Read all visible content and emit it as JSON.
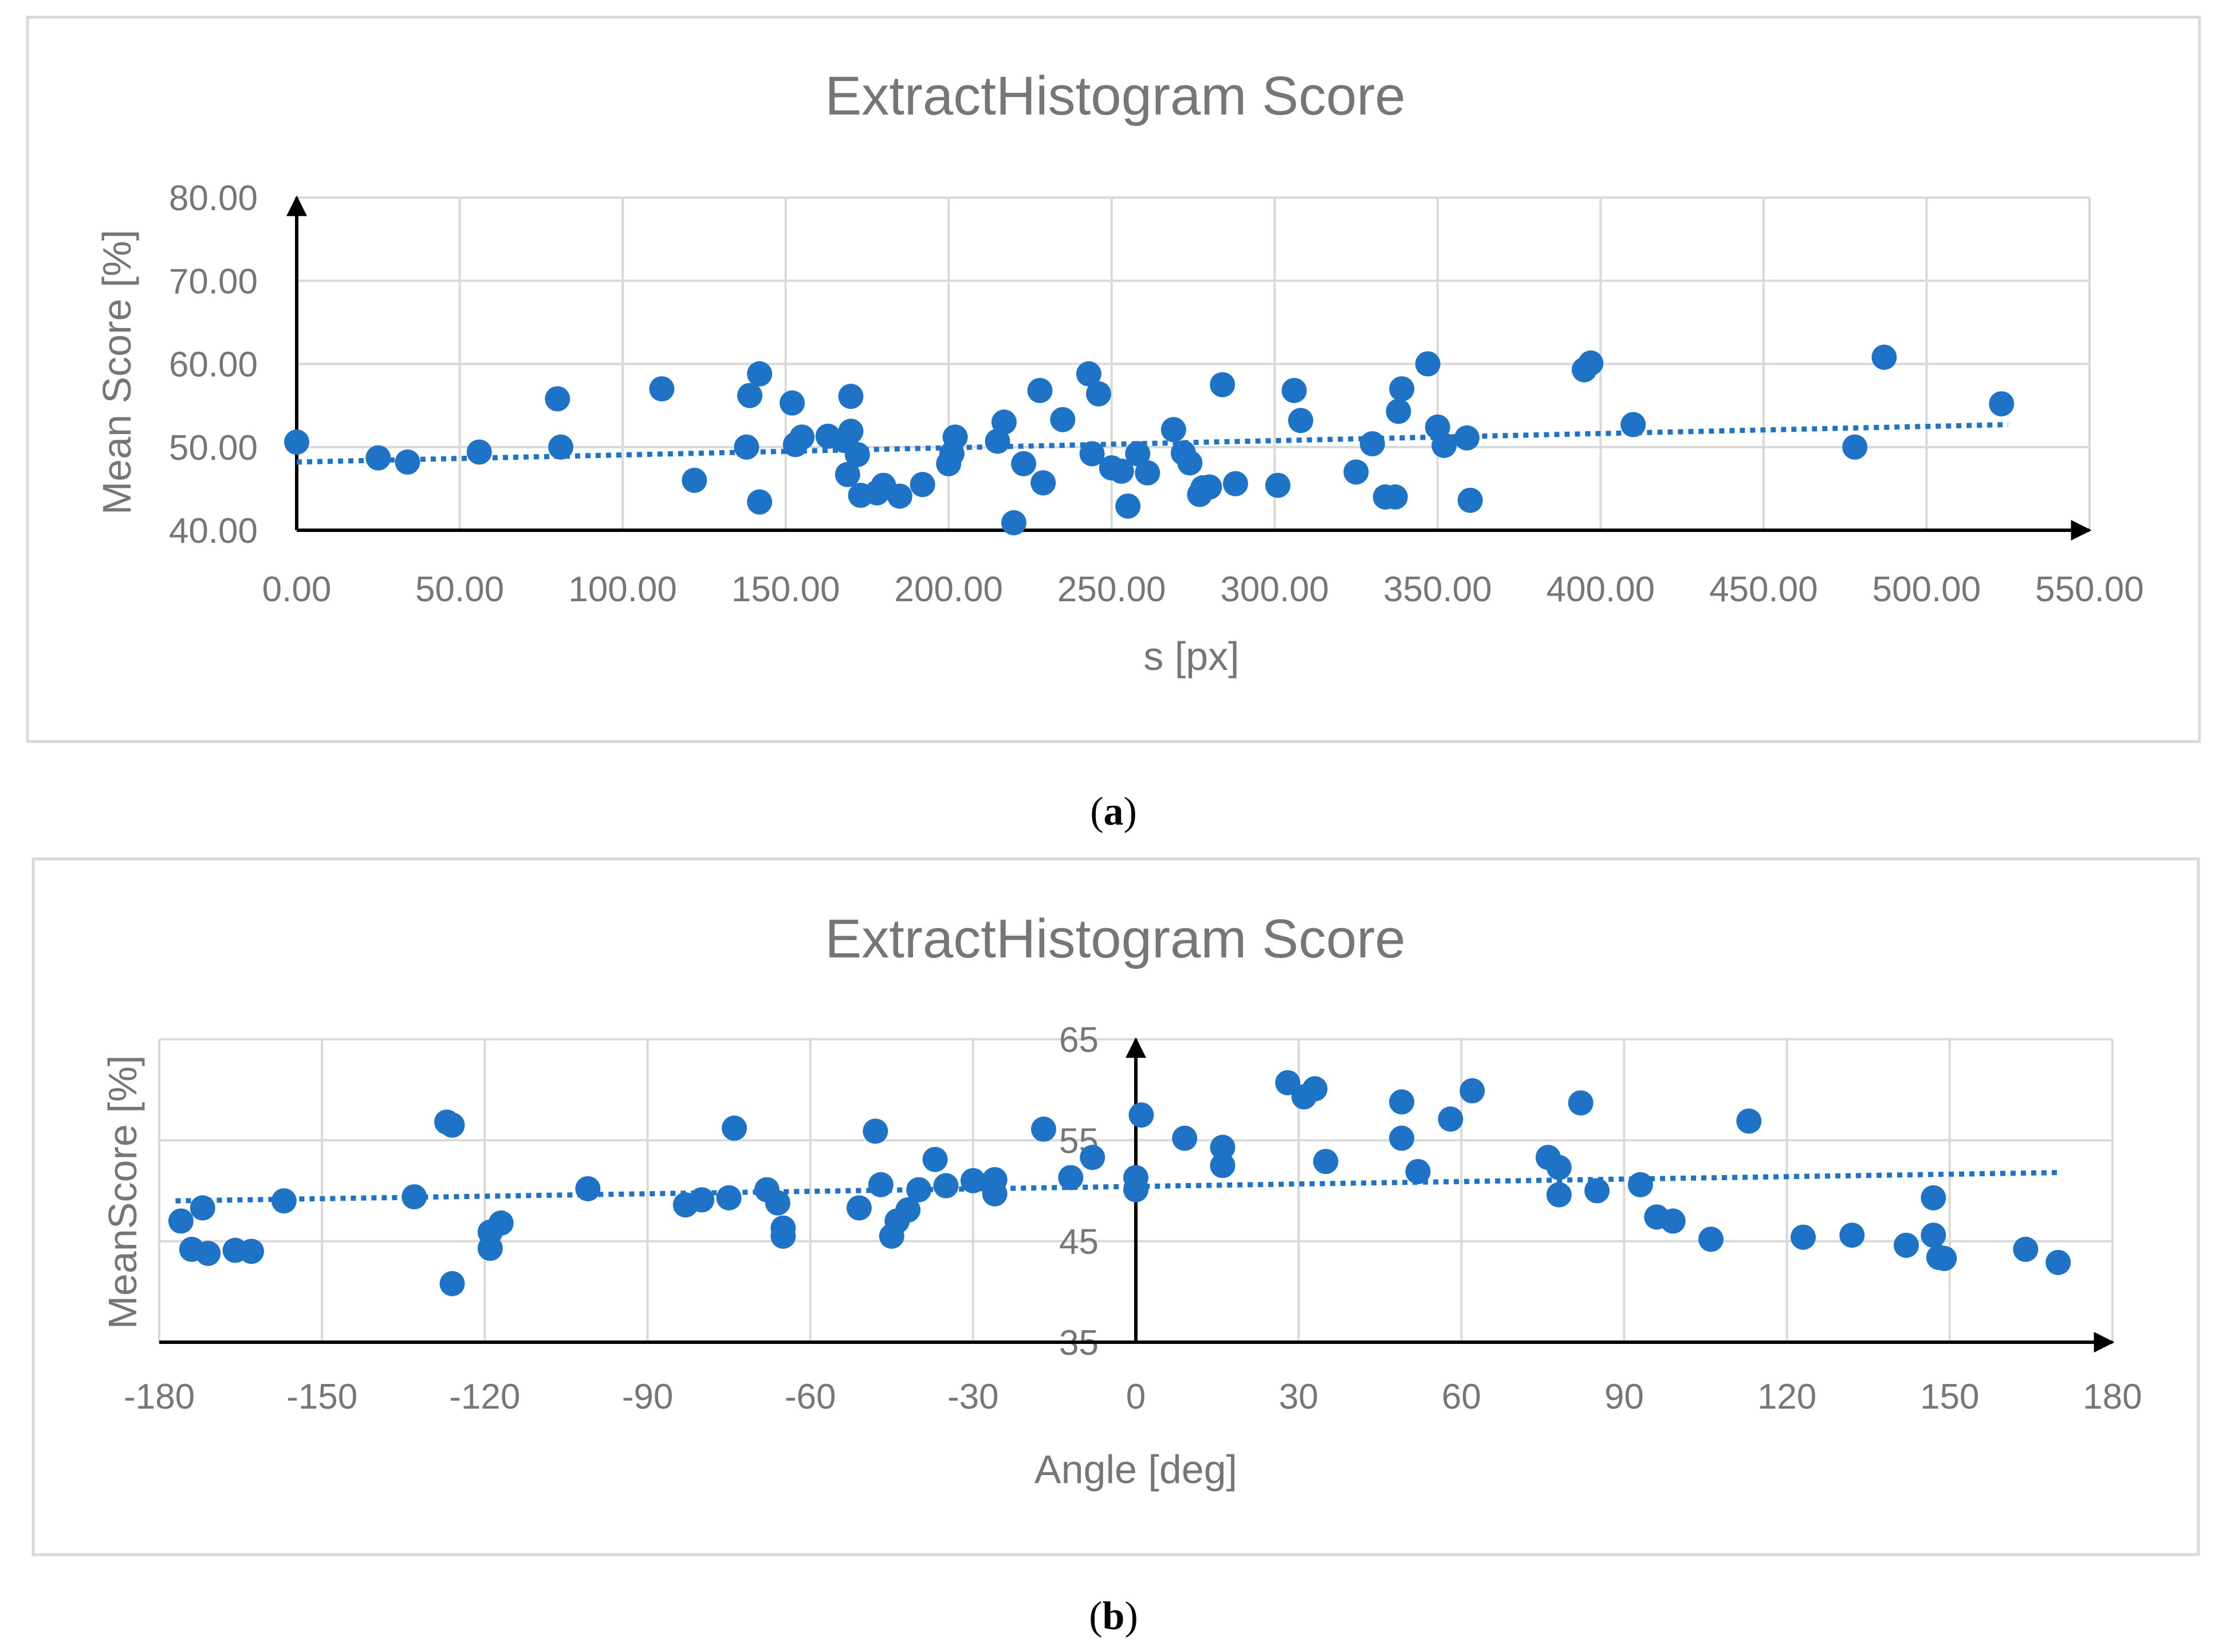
{
  "chart_data": [
    {
      "type": "scatter",
      "title": "ExtractHistogram Score",
      "xlabel": "s [px]",
      "ylabel": "Mean Score [%]",
      "xlim": [
        0,
        550
      ],
      "ylim": [
        40,
        80
      ],
      "xticks": [
        "0.00",
        "50.00",
        "100.00",
        "150.00",
        "200.00",
        "250.00",
        "300.00",
        "350.00",
        "400.00",
        "450.00",
        "500.00",
        "550.00"
      ],
      "yticks": [
        "40.00",
        "50.00",
        "60.00",
        "70.00",
        "80.00"
      ],
      "grid": true,
      "caption": "(a)",
      "caption_letter": "a",
      "marker_color": "#1f73c6",
      "trendline": {
        "style": "dotted",
        "x": [
          0,
          525
        ],
        "y": [
          48.2,
          52.7
        ]
      },
      "series": [
        {
          "name": "Mean Score",
          "x": [
            0,
            25,
            34,
            56,
            80,
            81,
            112,
            122,
            138,
            139,
            142,
            142,
            152,
            153,
            155,
            163,
            168,
            169,
            170,
            170,
            172,
            173,
            178,
            180,
            185,
            192,
            200,
            201,
            202,
            215,
            217,
            220,
            223,
            228,
            229,
            235,
            243,
            244,
            246,
            250,
            253,
            255,
            258,
            261,
            269,
            272,
            274,
            277,
            278,
            280,
            284,
            288,
            301,
            306,
            308,
            325,
            330,
            334,
            337,
            338,
            339,
            347,
            350,
            352,
            359,
            360,
            395,
            397,
            410,
            478,
            487,
            523
          ],
          "y": [
            50.6,
            48.7,
            48.2,
            49.4,
            55.8,
            50.0,
            57.0,
            46.0,
            50.0,
            56.2,
            58.8,
            43.4,
            55.3,
            50.3,
            51.2,
            51.3,
            50.8,
            46.7,
            56.1,
            51.9,
            49.1,
            44.2,
            44.5,
            45.4,
            44.1,
            45.5,
            48.0,
            49.2,
            51.2,
            50.7,
            53.0,
            40.9,
            48.0,
            56.8,
            45.7,
            53.3,
            58.8,
            49.2,
            56.4,
            47.5,
            47.1,
            42.9,
            49.2,
            46.9,
            52.1,
            49.3,
            48.1,
            44.3,
            45.1,
            45.2,
            57.5,
            45.6,
            45.4,
            56.8,
            53.2,
            47.0,
            50.4,
            44.0,
            44.0,
            54.3,
            57.0,
            60.0,
            52.4,
            50.2,
            51.1,
            43.6,
            59.3,
            60.1,
            52.7,
            50.0,
            60.8,
            55.2
          ]
        }
      ]
    },
    {
      "type": "scatter",
      "title": "ExtractHistogram Score",
      "xlabel": "Angle [deg]",
      "ylabel": "MeanScore [%]",
      "xlim": [
        -180,
        180
      ],
      "ylim": [
        35,
        65
      ],
      "xticks": [
        "-180",
        "-150",
        "-120",
        "-90",
        "-60",
        "-30",
        "0",
        "30",
        "60",
        "90",
        "120",
        "150",
        "180"
      ],
      "yticks": [
        "35",
        "45",
        "55",
        "65"
      ],
      "grid": true,
      "caption": "(b)",
      "caption_letter": "b",
      "marker_color": "#1f73c6",
      "trendline": {
        "style": "dotted",
        "x": [
          -177,
          170
        ],
        "y": [
          49.0,
          51.8
        ]
      },
      "series": [
        {
          "name": "MeanScore",
          "x": [
            -176,
            -174,
            -172,
            -171,
            -166,
            -163,
            -157,
            -133,
            -127,
            -126,
            -126,
            -119,
            -119,
            -117,
            -101,
            -83,
            -80,
            -75,
            -74,
            -68,
            -66,
            -65,
            -65,
            -51,
            -48,
            -47,
            -45,
            -44,
            -42,
            -40,
            -37,
            -35,
            -30,
            -26,
            -26,
            -17,
            -12,
            -8,
            0,
            0,
            1,
            9,
            16,
            16,
            28,
            31,
            33,
            35,
            49,
            49,
            52,
            58,
            62,
            76,
            78,
            78,
            82,
            85,
            93,
            96,
            99,
            106,
            113,
            123,
            132,
            142,
            147,
            147,
            148,
            149,
            164,
            170
          ],
          "y": [
            47.0,
            44.2,
            48.3,
            43.8,
            44.1,
            44.0,
            49.0,
            49.4,
            56.8,
            56.5,
            40.8,
            45.9,
            44.3,
            46.8,
            50.2,
            48.6,
            49.1,
            49.3,
            56.2,
            50.1,
            48.8,
            46.3,
            45.5,
            48.3,
            55.9,
            50.6,
            45.5,
            47.0,
            48.1,
            50.1,
            53.1,
            50.5,
            51.0,
            49.7,
            51.1,
            56.1,
            51.3,
            53.3,
            51.3,
            50.1,
            57.5,
            55.2,
            54.3,
            52.5,
            60.7,
            59.3,
            60.1,
            52.9,
            58.8,
            55.2,
            51.9,
            57.1,
            59.9,
            53.3,
            49.6,
            52.3,
            58.7,
            50.0,
            50.6,
            47.4,
            47.0,
            45.2,
            56.9,
            45.4,
            45.6,
            44.6,
            45.6,
            49.3,
            43.4,
            43.3,
            44.2,
            42.9
          ]
        }
      ]
    }
  ]
}
